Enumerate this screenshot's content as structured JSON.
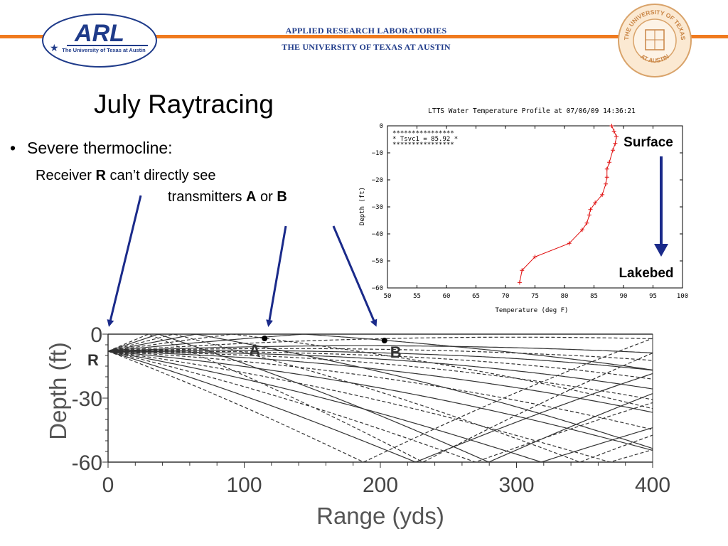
{
  "header": {
    "arl_logo_text": "ARL",
    "arl_logo_subtext": "The University of Texas at Austin",
    "lab_name": "APPLIED RESEARCH LABORATORIES",
    "university": "THE UNIVERSITY OF TEXAS AT AUSTIN",
    "seal_top_text": "THE UNIVERSITY OF TEXAS",
    "seal_bottom_text": "AT AUSTIN",
    "accent_color": "#f07a1e",
    "brand_color": "#1f3b8a"
  },
  "slide": {
    "title": "July Raytracing",
    "bullet": "Severe thermocline:",
    "sub_line1_a": "Receiver ",
    "sub_line1_b": "R",
    "sub_line1_c": " can’t directly see",
    "sub_line2_a": "transmitters ",
    "sub_line2_b": "A",
    "sub_line2_c": " or ",
    "sub_line2_d": "B"
  },
  "profile_chart": {
    "title": "LTTS Water Temperature Profile at 07/06/09  14:36:21",
    "xlabel": "Temperature (deg F)",
    "ylabel": "Depth (ft)",
    "box_line1": "****************",
    "box_line2": "* Tsvc1 = 85.92 *",
    "box_line3": "****************",
    "surface_label": "Surface",
    "lakebed_label": "Lakebed"
  },
  "raytrace": {
    "xlabel": "Range (yds)",
    "ylabel": "Depth (ft)",
    "receiver_label": "R",
    "transmitter_a_label": "A",
    "transmitter_b_label": "B"
  },
  "chart_data": [
    {
      "type": "line",
      "title": "LTTS Water Temperature Profile at 07/06/09  14:36:21",
      "xlabel": "Temperature (deg F)",
      "ylabel": "Depth (ft)",
      "xlim": [
        50,
        100
      ],
      "ylim": [
        -60,
        0
      ],
      "xticks": [
        50,
        55,
        60,
        65,
        70,
        75,
        80,
        85,
        90,
        95,
        100
      ],
      "yticks": [
        0,
        -10,
        -20,
        -30,
        -40,
        -50,
        -60
      ],
      "grid": false,
      "series": [
        {
          "color": "#e01010",
          "x": [
            88.0,
            88.4,
            88.8,
            88.6,
            88.2,
            87.6,
            87.2,
            87.2,
            87.0,
            86.4,
            85.2,
            84.4,
            84.2,
            83.8,
            83.0,
            80.8,
            75.0,
            72.8,
            72.4
          ],
          "y": [
            0.0,
            -2.0,
            -4.0,
            -6.5,
            -9.0,
            -13.5,
            -16.0,
            -19.0,
            -21.5,
            -25.5,
            -28.5,
            -31.0,
            -33.0,
            -36.0,
            -38.5,
            -43.5,
            -48.5,
            -53.5,
            -58.0
          ]
        }
      ]
    },
    {
      "type": "line",
      "xlabel": "Range (yds)",
      "ylabel": "Depth (ft)",
      "xlim": [
        0,
        400
      ],
      "ylim": [
        -60,
        0
      ],
      "xticks": [
        0,
        100,
        200,
        300,
        400
      ],
      "yticks": [
        0,
        -30,
        -60
      ],
      "receiver": {
        "range": 0,
        "depth": -8
      },
      "transmitters": [
        {
          "name": "A",
          "range": 115,
          "depth": -2
        },
        {
          "name": "B",
          "range": 203,
          "depth": -3
        }
      ],
      "ray_launch_angles": [
        -0.42,
        -0.34,
        -0.27,
        -0.21,
        -0.16,
        -0.11,
        -0.07,
        -0.04,
        -0.02,
        -0.005,
        0.008,
        0.02,
        0.035,
        0.05,
        0.08,
        0.12,
        0.17,
        0.23,
        0.3,
        0.38,
        0.46
      ]
    }
  ]
}
